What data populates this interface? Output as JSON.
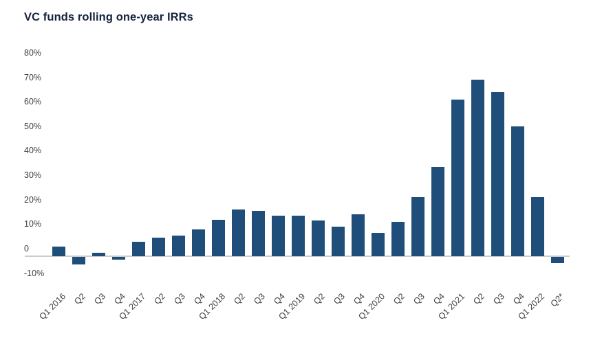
{
  "chart_data": {
    "type": "bar",
    "title": "VC funds rolling one-year IRRs",
    "categories": [
      "Q1 2016",
      "Q2",
      "Q3",
      "Q4",
      "Q1 2017",
      "Q2",
      "Q3",
      "Q4",
      "Q1 2018",
      "Q2",
      "Q3",
      "Q4",
      "Q1 2019",
      "Q2",
      "Q3",
      "Q4",
      "Q1 2020",
      "Q2",
      "Q3",
      "Q4",
      "Q1 2021",
      "Q2",
      "Q3",
      "Q4",
      "Q1 2022",
      "Q2*"
    ],
    "values": [
      4,
      -3,
      1.5,
      -1,
      6,
      7.5,
      8.5,
      11,
      15,
      19,
      18.5,
      16.5,
      16.5,
      14.5,
      12,
      17,
      9.5,
      14,
      24,
      36.5,
      64,
      72,
      67,
      53,
      24,
      -2.5
    ],
    "unit": "%",
    "xlabel": "",
    "ylabel": "",
    "ylim": [
      -10,
      80
    ],
    "y_ticks": [
      {
        "label": "80%",
        "value": 80
      },
      {
        "label": "70%",
        "value": 70
      },
      {
        "label": "60%",
        "value": 60
      },
      {
        "label": "50%",
        "value": 50
      },
      {
        "label": "40%",
        "value": 40
      },
      {
        "label": "30%",
        "value": 30
      },
      {
        "label": "20%",
        "value": 20
      },
      {
        "label": "10%",
        "value": 10
      },
      {
        "label": "0",
        "value": 0
      },
      {
        "label": "-10%",
        "value": -10
      }
    ],
    "grid": false,
    "legend": false,
    "colors": {
      "bar": "#1f4e7b",
      "title": "#16243f",
      "axis_labels": "#404040",
      "zero_line": "#cccccc",
      "background": "#ffffff"
    }
  }
}
